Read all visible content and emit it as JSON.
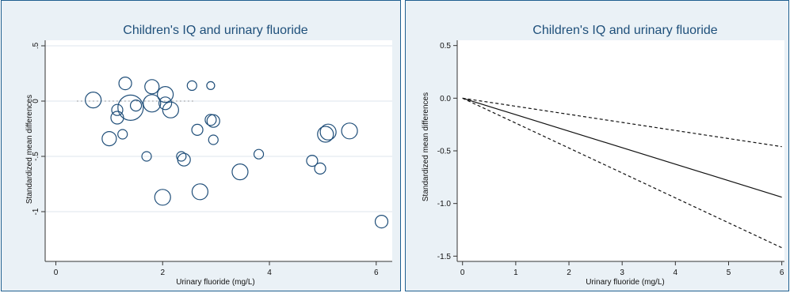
{
  "chart_data": [
    {
      "type": "scatter",
      "title": "Children's IQ and urinary fluoride",
      "xlabel": "Urinary fluoride (mg/L)",
      "ylabel": "Standardized mean differences",
      "xlim": [
        -0.2,
        6.3
      ],
      "ylim": [
        -1.45,
        0.55
      ],
      "xticks": [
        0,
        2,
        4,
        6
      ],
      "xtick_labels": [
        "0",
        "2",
        "4",
        "6"
      ],
      "yticks": [
        0.5,
        0,
        -0.5,
        -1
      ],
      "ytick_labels": [
        ".5",
        "0",
        "-.5",
        "-1"
      ],
      "grid": true,
      "reference_line_y": 0,
      "marker": "hollow circle, size proportional to study weight",
      "points": [
        {
          "x": 0.7,
          "y": 0.01,
          "size": 10
        },
        {
          "x": 1.0,
          "y": -0.34,
          "size": 9
        },
        {
          "x": 1.15,
          "y": -0.08,
          "size": 7
        },
        {
          "x": 1.15,
          "y": -0.15,
          "size": 8
        },
        {
          "x": 1.25,
          "y": -0.3,
          "size": 6
        },
        {
          "x": 1.3,
          "y": 0.16,
          "size": 8
        },
        {
          "x": 1.4,
          "y": -0.06,
          "size": 16
        },
        {
          "x": 1.5,
          "y": -0.04,
          "size": 7
        },
        {
          "x": 1.7,
          "y": -0.5,
          "size": 6
        },
        {
          "x": 1.8,
          "y": 0.13,
          "size": 9
        },
        {
          "x": 1.8,
          "y": -0.02,
          "size": 11
        },
        {
          "x": 2.05,
          "y": 0.06,
          "size": 10
        },
        {
          "x": 2.05,
          "y": -0.02,
          "size": 8
        },
        {
          "x": 2.15,
          "y": -0.08,
          "size": 10
        },
        {
          "x": 2.0,
          "y": -0.87,
          "size": 10
        },
        {
          "x": 2.35,
          "y": -0.5,
          "size": 6
        },
        {
          "x": 2.4,
          "y": -0.53,
          "size": 8
        },
        {
          "x": 2.55,
          "y": 0.14,
          "size": 6
        },
        {
          "x": 2.65,
          "y": -0.26,
          "size": 7
        },
        {
          "x": 2.7,
          "y": -0.82,
          "size": 10
        },
        {
          "x": 2.9,
          "y": 0.14,
          "size": 5
        },
        {
          "x": 2.9,
          "y": -0.17,
          "size": 7
        },
        {
          "x": 2.95,
          "y": -0.18,
          "size": 8
        },
        {
          "x": 2.95,
          "y": -0.35,
          "size": 6
        },
        {
          "x": 3.45,
          "y": -0.64,
          "size": 10
        },
        {
          "x": 3.8,
          "y": -0.48,
          "size": 6
        },
        {
          "x": 4.8,
          "y": -0.54,
          "size": 7
        },
        {
          "x": 4.95,
          "y": -0.61,
          "size": 7
        },
        {
          "x": 5.05,
          "y": -0.3,
          "size": 10
        },
        {
          "x": 5.1,
          "y": -0.28,
          "size": 10
        },
        {
          "x": 5.5,
          "y": -0.27,
          "size": 10
        },
        {
          "x": 6.1,
          "y": -1.09,
          "size": 8
        }
      ]
    },
    {
      "type": "line",
      "title": "Children's IQ and urinary fluoride",
      "xlabel": "Urinary fluoride (mg/L)",
      "ylabel": "Standardized mean differences",
      "xlim": [
        -0.1,
        6.05
      ],
      "ylim": [
        -1.55,
        0.55
      ],
      "xticks": [
        0,
        1,
        2,
        3,
        4,
        5,
        6
      ],
      "xtick_labels": [
        "0",
        "1",
        "2",
        "3",
        "4",
        "5",
        "6"
      ],
      "yticks": [
        0.5,
        0,
        -0.5,
        -1,
        -1.5
      ],
      "ytick_labels": [
        "0.5",
        "0.0",
        "-0.5",
        "-1.0",
        "-1.5"
      ],
      "grid": false,
      "series": [
        {
          "style": "solid",
          "x": [
            0,
            6
          ],
          "y": [
            0,
            -0.94
          ]
        },
        {
          "style": "dashed",
          "x": [
            0,
            6
          ],
          "y": [
            0,
            -0.46
          ]
        },
        {
          "style": "dashed",
          "x": [
            0,
            6
          ],
          "y": [
            0,
            -1.42
          ]
        }
      ]
    }
  ]
}
